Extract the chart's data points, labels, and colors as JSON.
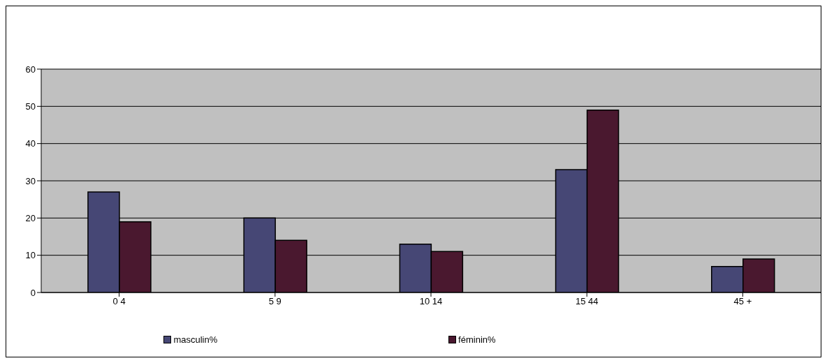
{
  "chart_data": {
    "type": "bar",
    "categories": [
      "0   4",
      "5   9",
      "10  14",
      "15  44",
      "45 +"
    ],
    "series": [
      {
        "name": "masculin%",
        "color": "#464775",
        "values": [
          27,
          20,
          13,
          33,
          7
        ]
      },
      {
        "name": "féminin%",
        "color": "#4a182f",
        "values": [
          19,
          14,
          11,
          49,
          9
        ]
      }
    ],
    "ylim": [
      0,
      60
    ],
    "yticks": [
      0,
      10,
      20,
      30,
      40,
      50,
      60
    ],
    "grid": "y",
    "legend": "bottom"
  }
}
